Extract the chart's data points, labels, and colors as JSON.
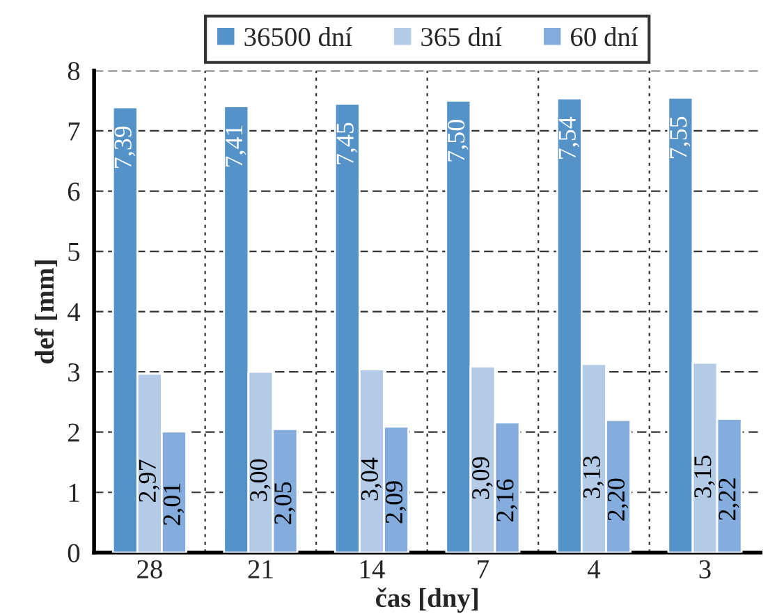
{
  "chart_data": {
    "type": "bar",
    "xlabel": "čas [dny]",
    "ylabel": "def [mm]",
    "categories": [
      "28",
      "21",
      "14",
      "7",
      "4",
      "3"
    ],
    "series": [
      {
        "name": "36500 dní",
        "color": "#5592c8",
        "values": [
          7.39,
          7.41,
          7.45,
          7.5,
          7.54,
          7.55
        ],
        "value_labels": [
          "7,39",
          "7,41",
          "7,45",
          "7,50",
          "7,54",
          "7,55"
        ]
      },
      {
        "name": "365 dní",
        "color": "#b4cbe8",
        "values": [
          2.97,
          3.0,
          3.04,
          3.09,
          3.13,
          3.15
        ],
        "value_labels": [
          "2,97",
          "3,00",
          "3,04",
          "3,09",
          "3,13",
          "3,15"
        ]
      },
      {
        "name": "60 dní",
        "color": "#84acdc",
        "values": [
          2.01,
          2.05,
          2.09,
          2.16,
          2.2,
          2.22
        ],
        "value_labels": [
          "2,01",
          "2,05",
          "2,09",
          "2,16",
          "2,20",
          "2,22"
        ]
      }
    ],
    "ylim": [
      0,
      8
    ],
    "yticks": [
      0,
      1,
      2,
      3,
      4,
      5,
      6,
      7,
      8
    ],
    "grid": true,
    "legend": "top"
  }
}
